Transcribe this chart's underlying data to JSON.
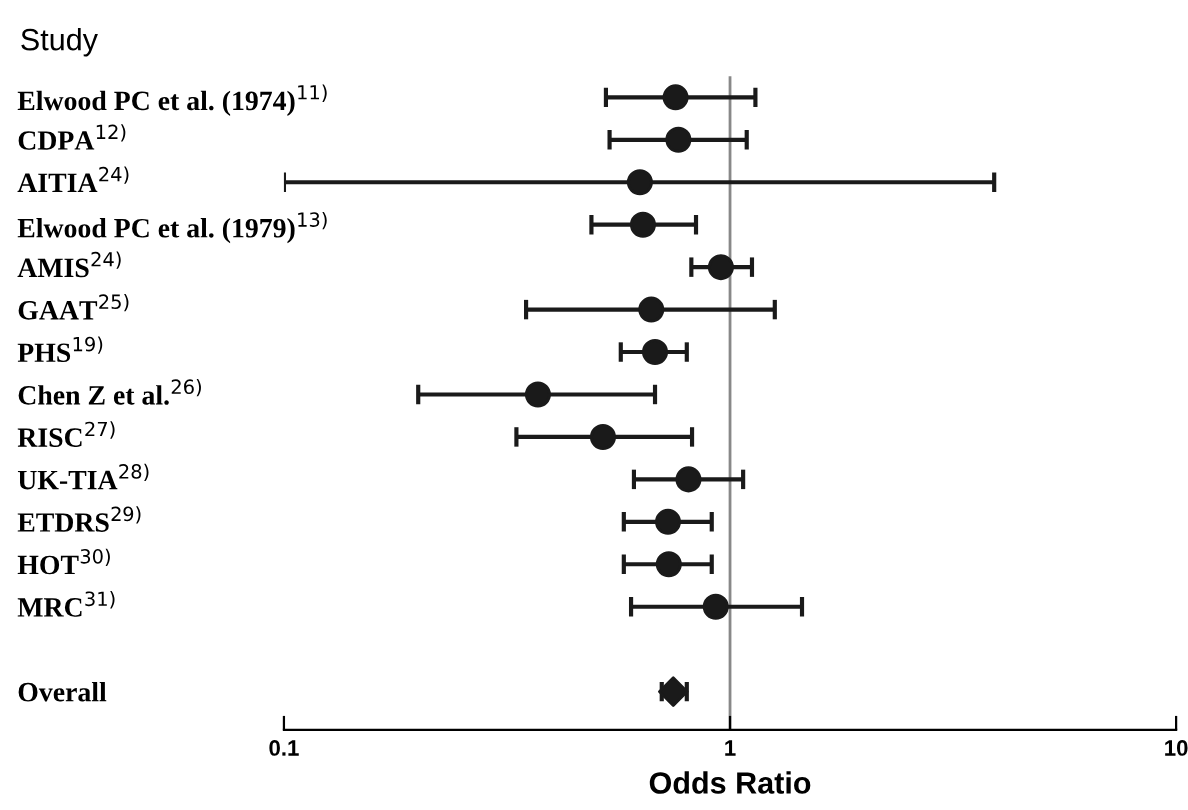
{
  "chart_data": {
    "type": "scatter",
    "orientation": "horizontal",
    "ylabel": "Study",
    "xlabel": "Odds Ratio",
    "categories": [
      "Elwood PC et al. (1974)$^{11)}$",
      "CDPA$^{12)}$",
      "AITIA$^{24)}$",
      "Elwood PC et al. (1979)$^{13)}$",
      "AMIS$^{24)}$",
      "GAAT$^{25)}$",
      "PHS$^{19)}$",
      "Chen Z et al.$^{26)}$",
      "RISC$^{27)}$",
      "UK-TIA$^{28)}$",
      "ETDRS$^{29)}$",
      "HOT$^{30)}$",
      "MRC$^{31)}$",
      null,
      "Overall"
    ],
    "series": [
      {
        "color": "#1a1a1a",
        "marker": "circle",
        "values": [
          0.755,
          0.766,
          0.628,
          0.638,
          0.954,
          0.666,
          0.679,
          0.371,
          0.519,
          0.807,
          0.726,
          0.729,
          0.929,
          null,
          null
        ],
        "errors": [
          [
            0.527,
            1.14
          ],
          [
            0.537,
            1.09
          ],
          [
            0.1,
            3.91
          ],
          [
            0.489,
            0.839
          ],
          [
            0.819,
            1.12
          ],
          [
            0.349,
            1.26
          ],
          [
            0.569,
            0.8
          ],
          [
            0.2,
            0.679
          ],
          [
            0.332,
            0.822
          ],
          [
            0.609,
            1.07
          ],
          [
            0.578,
            0.91
          ],
          [
            0.578,
            0.91
          ],
          [
            0.6,
            1.45
          ],
          null,
          null
        ]
      },
      {
        "color": "#1a1a1a",
        "marker": "diamond",
        "values": [
          null,
          null,
          null,
          null,
          null,
          null,
          null,
          null,
          null,
          null,
          null,
          null,
          null,
          null,
          0.746
        ],
        "errors": [
          null,
          null,
          null,
          null,
          null,
          null,
          null,
          null,
          null,
          null,
          null,
          null,
          null,
          null,
          [
            0.703,
            0.8
          ]
        ]
      }
    ],
    "log": "x",
    "xlim": [
      0.1,
      10
    ],
    "xticks": [
      0.1,
      1,
      10
    ],
    "ref_lines": [
      {
        "axis": "x",
        "value": 1,
        "color": "#888888"
      }
    ],
    "grid": false
  }
}
